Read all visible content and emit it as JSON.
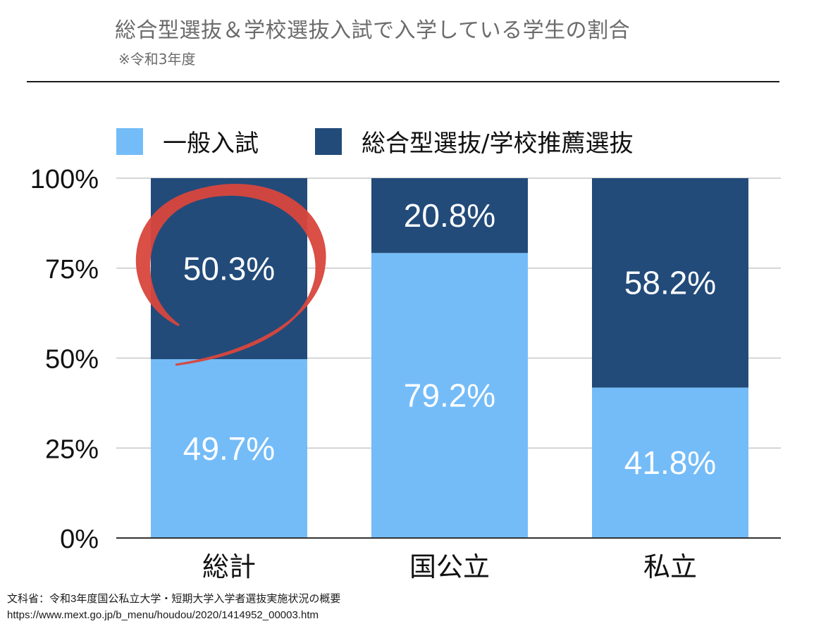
{
  "header": {
    "title": "総合型選抜＆学校選抜入試で入学している学生の割合",
    "subtitle": "※令和3年度"
  },
  "legend": {
    "items": [
      {
        "label": "一般入試",
        "color": "#74bcf8"
      },
      {
        "label": "総合型選抜/学校推薦選抜",
        "color": "#224b7a"
      }
    ]
  },
  "source": {
    "line1": "文科省：令和3年度国公私立大学・短期大学入学者選抜実施状況の概要",
    "line2": "https://www.mext.go.jp/b_menu/houdou/2020/1414952_00003.htm"
  },
  "colors": {
    "general": "#74bcf8",
    "selective": "#224b7a",
    "highlight": "#d9463d",
    "grid": "#c8c8c8",
    "axis": "#333333"
  },
  "chart_data": {
    "type": "bar",
    "stacked": true,
    "categories": [
      "総計",
      "国公立",
      "私立"
    ],
    "series": [
      {
        "name": "一般入試",
        "values": [
          49.7,
          79.2,
          41.8
        ],
        "labels": [
          "49.7%",
          "79.2%",
          "41.8%"
        ]
      },
      {
        "name": "総合型選抜/学校推薦選抜",
        "values": [
          50.3,
          20.8,
          58.2
        ],
        "labels": [
          "50.3%",
          "20.8%",
          "58.2%"
        ]
      }
    ],
    "ylim": [
      0,
      100
    ],
    "yticks": [
      0,
      25,
      50,
      75,
      100
    ],
    "ytick_labels": [
      "0%",
      "25%",
      "50%",
      "75%",
      "100%"
    ],
    "grid": true,
    "legend_position": "top-left",
    "annotation": {
      "type": "circle",
      "target_category": "総計",
      "target_series": "総合型選抜/学校推薦選抜"
    }
  }
}
